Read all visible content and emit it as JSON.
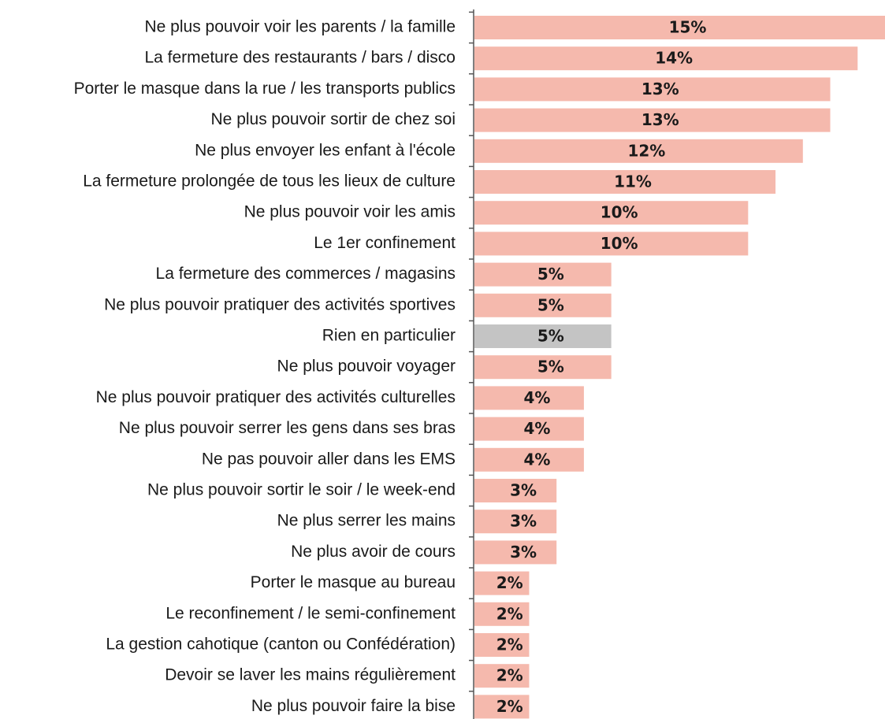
{
  "chart_data": {
    "type": "bar",
    "orientation": "horizontal",
    "categories": [
      "Ne plus pouvoir voir les parents / la famille",
      "La fermeture des restaurants / bars / disco",
      "Porter le masque dans la rue / les transports publics",
      "Ne plus pouvoir sortir de chez soi",
      "Ne plus envoyer les enfant à l'école",
      "La fermeture prolongée de tous les lieux de culture",
      "Ne plus pouvoir voir les amis",
      "Le 1er confinement",
      "La fermeture des commerces / magasins",
      "Ne plus pouvoir pratiquer des activités sportives",
      "Rien en particulier",
      "Ne plus pouvoir voyager",
      "Ne plus pouvoir pratiquer des activités culturelles",
      "Ne plus pouvoir serrer les gens dans ses bras",
      "Ne pas pouvoir aller dans les EMS",
      "Ne plus pouvoir sortir le soir / le week-end",
      "Ne plus serrer les mains",
      "Ne plus avoir de cours",
      "Porter le masque au bureau",
      "Le reconfinement / le semi-confinement",
      "La gestion cahotique (canton ou Confédération)",
      "Devoir se laver les mains régulièrement",
      "Ne plus pouvoir faire la bise"
    ],
    "values": [
      15,
      14,
      13,
      13,
      12,
      11,
      10,
      10,
      5,
      5,
      5,
      5,
      4,
      4,
      4,
      3,
      3,
      3,
      2,
      2,
      2,
      2,
      2
    ],
    "value_labels": [
      "15%",
      "14%",
      "13%",
      "13%",
      "12%",
      "11%",
      "10%",
      "10%",
      "5%",
      "5%",
      "5%",
      "5%",
      "4%",
      "4%",
      "4%",
      "3%",
      "3%",
      "3%",
      "2%",
      "2%",
      "2%",
      "2%",
      "2%"
    ],
    "colors": [
      "#f5b9ad",
      "#f5b9ad",
      "#f5b9ad",
      "#f5b9ad",
      "#f5b9ad",
      "#f5b9ad",
      "#f5b9ad",
      "#f5b9ad",
      "#f5b9ad",
      "#f5b9ad",
      "#c4c4c4",
      "#f5b9ad",
      "#f5b9ad",
      "#f5b9ad",
      "#f5b9ad",
      "#f5b9ad",
      "#f5b9ad",
      "#f5b9ad",
      "#f5b9ad",
      "#f5b9ad",
      "#f5b9ad",
      "#f5b9ad",
      "#f5b9ad"
    ]
  }
}
